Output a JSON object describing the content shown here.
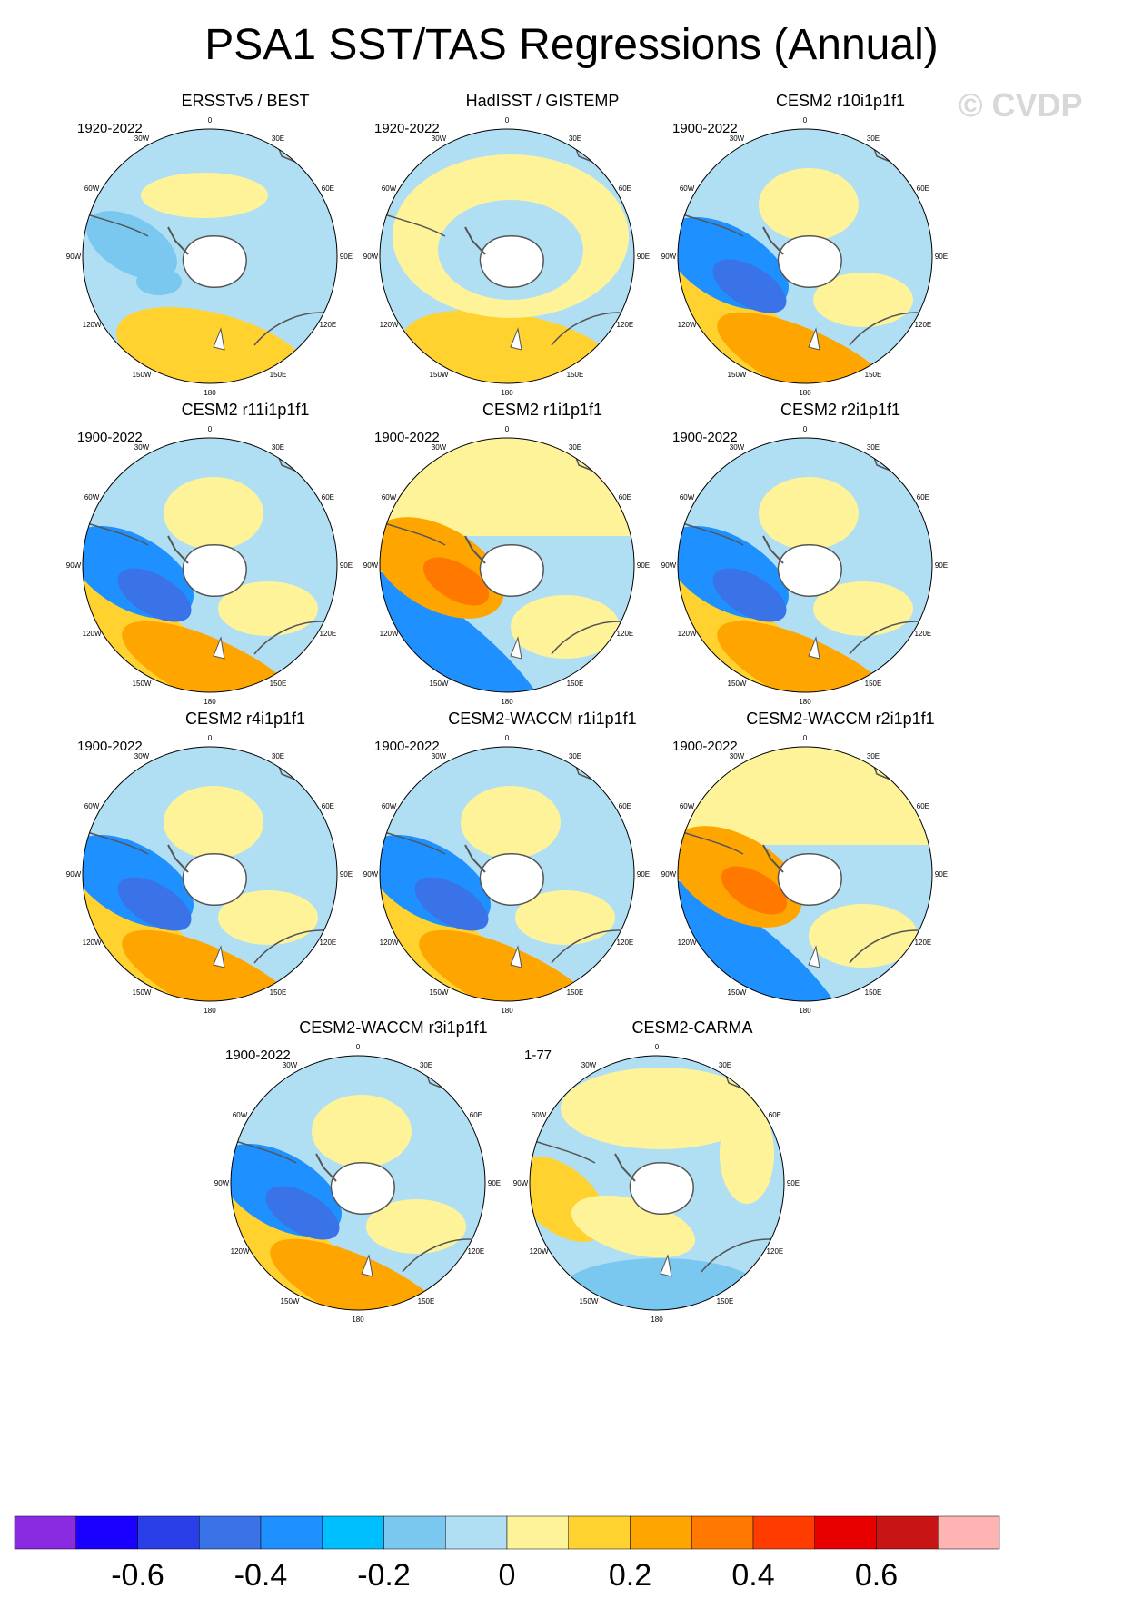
{
  "title": "PSA1 SST/TAS Regressions (Annual)",
  "watermark": "© CVDP",
  "longitude_labels": [
    "0",
    "30E",
    "60E",
    "90E",
    "120E",
    "150E",
    "180",
    "150W",
    "120W",
    "90W",
    "60W",
    "30W"
  ],
  "panels": [
    {
      "name": "ERSSTv5 / BEST",
      "period": "1920-2022",
      "pattern": "obs1"
    },
    {
      "name": "HadISST / GISTEMP",
      "period": "1920-2022",
      "pattern": "obs2"
    },
    {
      "name": "CESM2 r10i1p1f1",
      "period": "1900-2022",
      "pattern": "neg"
    },
    {
      "name": "CESM2 r11i1p1f1",
      "period": "1900-2022",
      "pattern": "neg"
    },
    {
      "name": "CESM2 r1i1p1f1",
      "period": "1900-2022",
      "pattern": "pos"
    },
    {
      "name": "CESM2 r2i1p1f1",
      "period": "1900-2022",
      "pattern": "neg"
    },
    {
      "name": "CESM2 r4i1p1f1",
      "period": "1900-2022",
      "pattern": "neg"
    },
    {
      "name": "CESM2-WACCM r1i1p1f1",
      "period": "1900-2022",
      "pattern": "neg"
    },
    {
      "name": "CESM2-WACCM r2i1p1f1",
      "period": "1900-2022",
      "pattern": "pos"
    },
    {
      "name": "CESM2-WACCM r3i1p1f1",
      "period": "1900-2022",
      "pattern": "neg"
    },
    {
      "name": "CESM2-CARMA",
      "period": "1-77",
      "pattern": "carma"
    }
  ],
  "colorbar": {
    "colors": [
      "#8a2be2",
      "#1a00ff",
      "#2a3fe8",
      "#3a73e8",
      "#1e90ff",
      "#00bfff",
      "#7ac8f0",
      "#b0dff4",
      "#fff39a",
      "#ffd230",
      "#ffa500",
      "#ff7800",
      "#ff3c00",
      "#e80000",
      "#c81414",
      "#ffb4b4"
    ],
    "labels": [
      "-0.6",
      "-0.4",
      "-0.2",
      "0",
      "0.2",
      "0.4",
      "0.6"
    ]
  },
  "palette": {
    "light_blue": "#b0dff4",
    "blue": "#7ac8f0",
    "mid_blue": "#1e90ff",
    "dark_blue": "#3a73e8",
    "light_yellow": "#fff39a",
    "yellow": "#ffd230",
    "orange": "#ffa500",
    "dark_orange": "#ff7800",
    "red": "#ff3c00"
  }
}
